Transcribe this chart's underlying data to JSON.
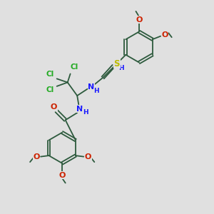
{
  "bg_color": "#e0e0e0",
  "bond_color": "#2d5a3d",
  "bond_width": 1.3,
  "atom_colors": {
    "N": "#1a1aff",
    "O": "#cc2200",
    "S": "#bbbb00",
    "Cl": "#22aa22",
    "H": "#1a1aff"
  },
  "font_size": 7.5,
  "ring_r": 0.72
}
